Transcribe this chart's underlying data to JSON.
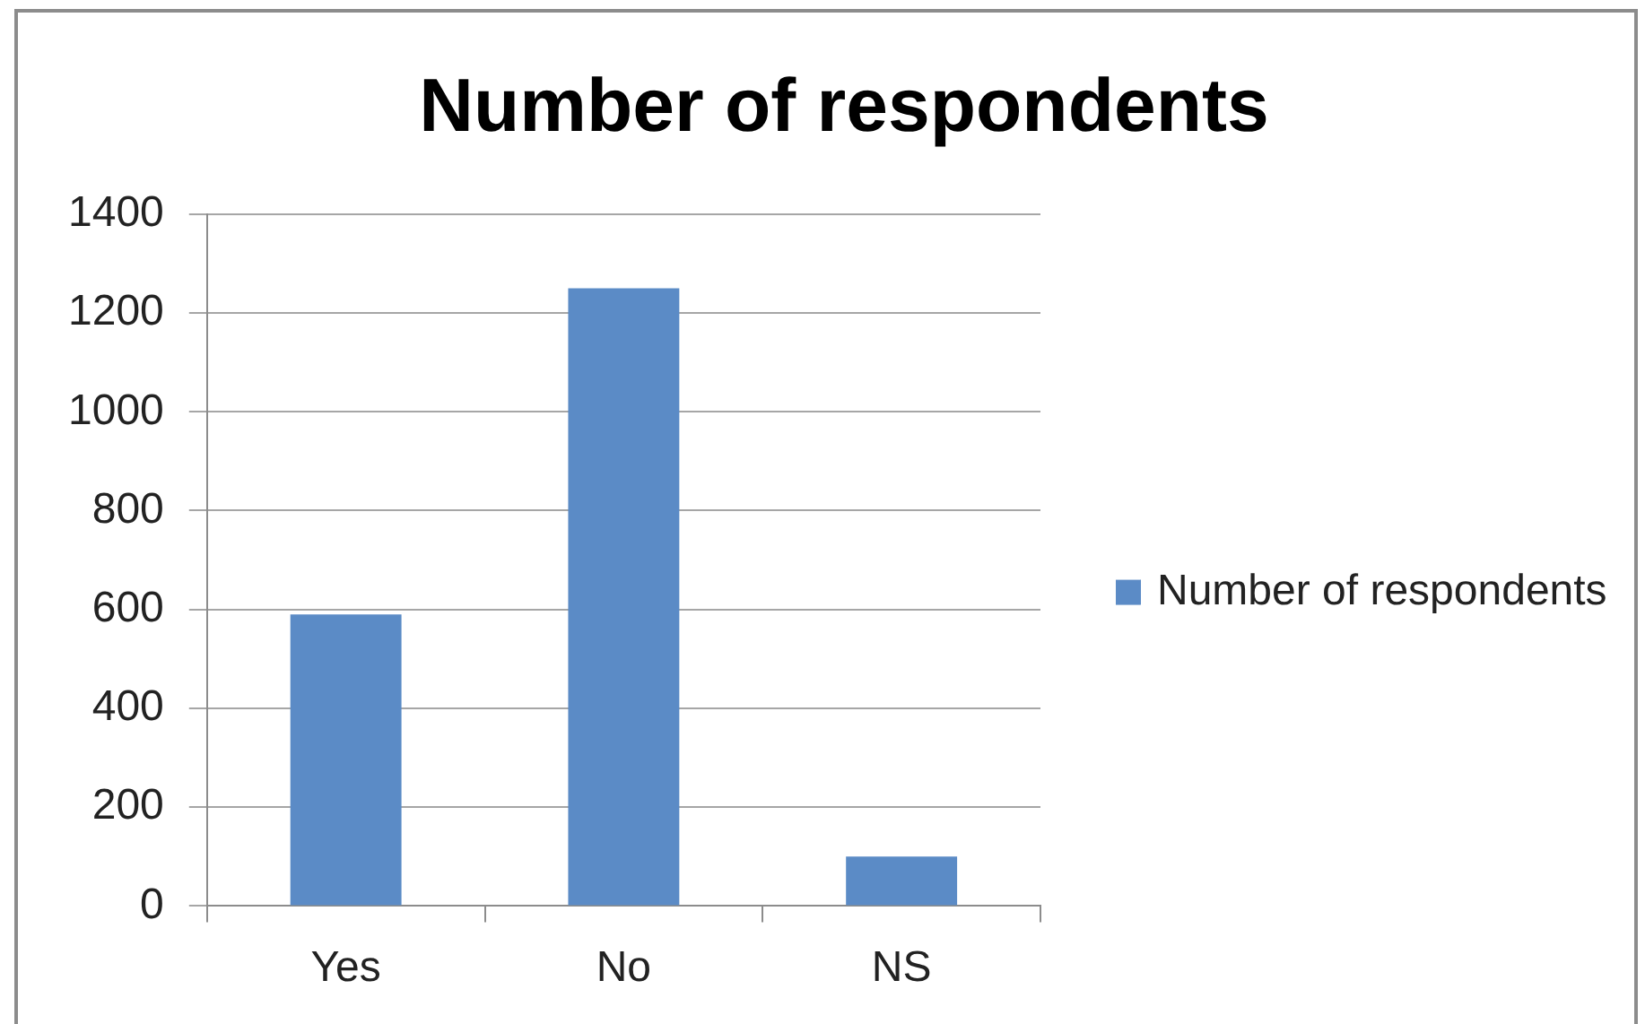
{
  "chart_data": {
    "type": "bar",
    "title": "Number of respondents",
    "categories": [
      "Yes",
      "No",
      "NS"
    ],
    "series": [
      {
        "name": "Number of respondents",
        "color": "#5b8bc6",
        "values": [
          590,
          1250,
          100
        ]
      }
    ],
    "ylim": [
      0,
      1400
    ],
    "yticks": [
      0,
      200,
      400,
      600,
      800,
      1000,
      1200,
      1400
    ],
    "grid": "y",
    "legend": "right"
  }
}
